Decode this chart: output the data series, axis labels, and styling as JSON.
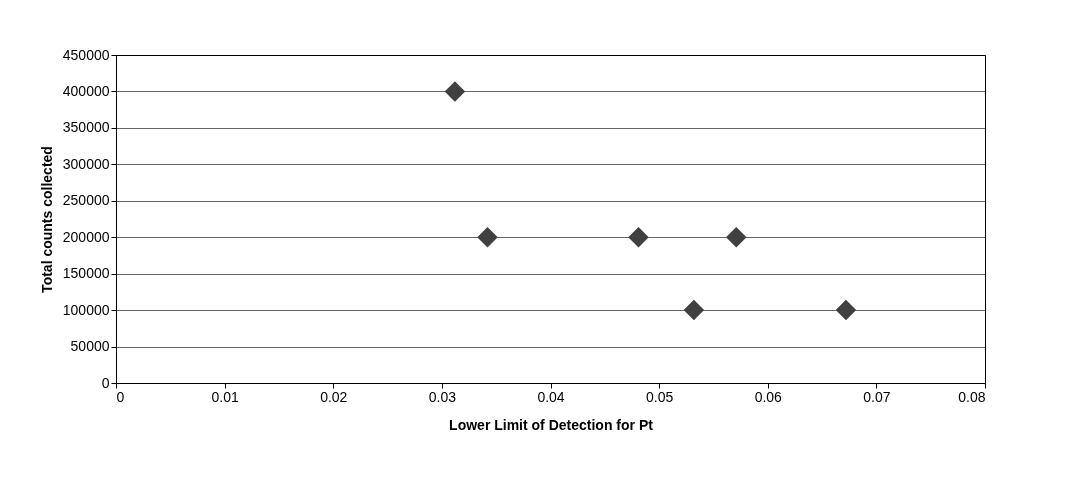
{
  "chart_data": {
    "type": "scatter",
    "xlabel": "Lower Limit of Detection for Pt",
    "ylabel": "Total counts collected",
    "x": [
      0.0312,
      0.0342,
      0.0481,
      0.0571,
      0.0532,
      0.0672
    ],
    "series": [
      {
        "color": "#404040",
        "values": [
          400000,
          200000,
          200000,
          200000,
          100000,
          100000
        ]
      }
    ],
    "xlim": [
      0,
      0.08
    ],
    "xticks": [
      0,
      0.01,
      0.02,
      0.03,
      0.04,
      0.05,
      0.06,
      0.07,
      0.08
    ],
    "ylim": [
      0,
      450000
    ],
    "yticks": [
      0,
      50000,
      100000,
      150000,
      200000,
      250000,
      300000,
      350000,
      400000,
      450000
    ],
    "grid": "y",
    "marker": "diamond",
    "legend": false
  }
}
